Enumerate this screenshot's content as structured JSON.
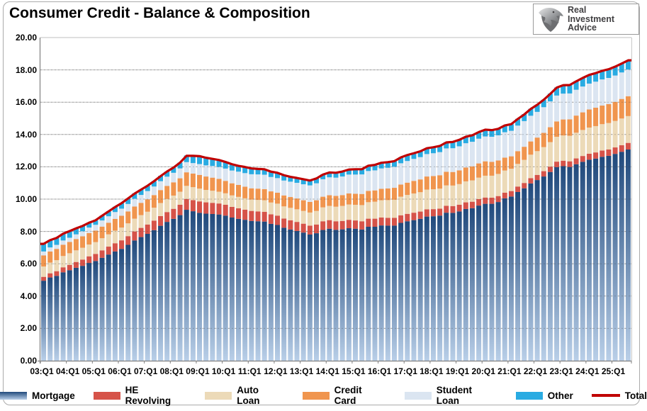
{
  "title": "Consumer Credit - Balance & Composition",
  "logo": {
    "lines": [
      "Real",
      "Investment",
      "Advice"
    ]
  },
  "colors": {
    "total_line": "#c00000",
    "gridline": "#bfbfbf",
    "axis": "#808080",
    "mortgage_gradient_bottom": "#b9cfe8",
    "mortgage_gradient_top": "#20497c",
    "he_revolving": "#d65349",
    "auto_loan": "#ecdab8",
    "credit_card": "#f0954e",
    "student_loan": "#dbe5f1",
    "other": "#29abe2"
  },
  "chart_data": {
    "type": "bar",
    "stacked": true,
    "grid": true,
    "legend_position": "bottom",
    "ylim": [
      0,
      20
    ],
    "ytick_step": 2,
    "y_tick_labels": [
      "0.00",
      "2.00",
      "4.00",
      "6.00",
      "8.00",
      "10.00",
      "12.00",
      "14.00",
      "16.00",
      "18.00",
      "20.00"
    ],
    "x_tick_labels": [
      "03:Q1",
      "04:Q1",
      "05:Q1",
      "06:Q1",
      "07:Q1",
      "08:Q1",
      "09:Q1",
      "10:Q1",
      "11:Q1",
      "12:Q1",
      "13:Q1",
      "14:Q1",
      "15:Q1",
      "16:Q1",
      "17:Q1",
      "18:Q1",
      "19:Q1",
      "20:Q1",
      "21:Q1",
      "22:Q1",
      "23:Q1",
      "24:Q1",
      "25:Q1"
    ],
    "x": [
      "03:Q1",
      "03:Q2",
      "03:Q3",
      "03:Q4",
      "04:Q1",
      "04:Q2",
      "04:Q3",
      "04:Q4",
      "05:Q1",
      "05:Q2",
      "05:Q3",
      "05:Q4",
      "06:Q1",
      "06:Q2",
      "06:Q3",
      "06:Q4",
      "07:Q1",
      "07:Q2",
      "07:Q3",
      "07:Q4",
      "08:Q1",
      "08:Q2",
      "08:Q3",
      "08:Q4",
      "09:Q1",
      "09:Q2",
      "09:Q3",
      "09:Q4",
      "10:Q1",
      "10:Q2",
      "10:Q3",
      "10:Q4",
      "11:Q1",
      "11:Q2",
      "11:Q3",
      "11:Q4",
      "12:Q1",
      "12:Q2",
      "12:Q3",
      "12:Q4",
      "13:Q1",
      "13:Q2",
      "13:Q3",
      "13:Q4",
      "14:Q1",
      "14:Q2",
      "14:Q3",
      "14:Q4",
      "15:Q1",
      "15:Q2",
      "15:Q3",
      "15:Q4",
      "16:Q1",
      "16:Q2",
      "16:Q3",
      "16:Q4",
      "17:Q1",
      "17:Q2",
      "17:Q3",
      "17:Q4",
      "18:Q1",
      "18:Q2",
      "18:Q3",
      "18:Q4",
      "19:Q1",
      "19:Q2",
      "19:Q3",
      "19:Q4",
      "20:Q1",
      "20:Q2",
      "20:Q3",
      "20:Q4",
      "21:Q1",
      "21:Q2",
      "21:Q3",
      "21:Q4",
      "22:Q1",
      "22:Q2",
      "22:Q3",
      "22:Q4",
      "23:Q1",
      "23:Q2",
      "23:Q3",
      "23:Q4",
      "24:Q1",
      "24:Q2",
      "24:Q3",
      "24:Q4",
      "25:Q1",
      "25:Q2",
      "25:Q3"
    ],
    "series": [
      {
        "name": "Mortgage",
        "fill": "gradient",
        "values": [
          4.95,
          5.15,
          5.25,
          5.47,
          5.6,
          5.75,
          5.87,
          6.05,
          6.17,
          6.37,
          6.57,
          6.76,
          6.92,
          7.17,
          7.44,
          7.65,
          7.85,
          8.08,
          8.35,
          8.59,
          8.78,
          9.01,
          9.34,
          9.25,
          9.15,
          9.1,
          9.08,
          9.05,
          8.98,
          8.86,
          8.78,
          8.72,
          8.65,
          8.63,
          8.61,
          8.47,
          8.4,
          8.23,
          8.12,
          8.03,
          7.93,
          7.81,
          7.89,
          8.09,
          8.17,
          8.1,
          8.13,
          8.2,
          8.17,
          8.12,
          8.29,
          8.29,
          8.37,
          8.36,
          8.36,
          8.53,
          8.63,
          8.7,
          8.78,
          8.92,
          8.94,
          8.98,
          9.16,
          9.15,
          9.24,
          9.39,
          9.44,
          9.6,
          9.71,
          9.71,
          9.82,
          10.05,
          10.16,
          10.44,
          10.67,
          10.97,
          11.18,
          11.4,
          11.68,
          11.98,
          12.04,
          11.99,
          12.16,
          12.31,
          12.44,
          12.51,
          12.62,
          12.68,
          12.8,
          12.93,
          13.07
        ]
      },
      {
        "name": "HE Revolving",
        "fill": "#d65349",
        "values": [
          0.24,
          0.26,
          0.29,
          0.31,
          0.33,
          0.36,
          0.39,
          0.41,
          0.44,
          0.46,
          0.49,
          0.51,
          0.53,
          0.54,
          0.56,
          0.57,
          0.58,
          0.59,
          0.6,
          0.61,
          0.62,
          0.64,
          0.67,
          0.69,
          0.71,
          0.7,
          0.69,
          0.68,
          0.67,
          0.66,
          0.65,
          0.63,
          0.62,
          0.61,
          0.6,
          0.59,
          0.58,
          0.57,
          0.57,
          0.56,
          0.55,
          0.55,
          0.54,
          0.54,
          0.53,
          0.53,
          0.52,
          0.52,
          0.51,
          0.51,
          0.5,
          0.5,
          0.49,
          0.48,
          0.48,
          0.47,
          0.46,
          0.46,
          0.45,
          0.45,
          0.44,
          0.43,
          0.43,
          0.42,
          0.41,
          0.41,
          0.4,
          0.4,
          0.39,
          0.38,
          0.37,
          0.35,
          0.34,
          0.34,
          0.33,
          0.33,
          0.32,
          0.33,
          0.33,
          0.34,
          0.34,
          0.35,
          0.36,
          0.36,
          0.37,
          0.38,
          0.39,
          0.39,
          0.4,
          0.41,
          0.41
        ]
      },
      {
        "name": "Auto Loan",
        "fill": "#ecdab8",
        "values": [
          0.64,
          0.66,
          0.68,
          0.7,
          0.72,
          0.72,
          0.73,
          0.73,
          0.73,
          0.75,
          0.76,
          0.78,
          0.79,
          0.79,
          0.79,
          0.79,
          0.79,
          0.8,
          0.81,
          0.81,
          0.82,
          0.81,
          0.81,
          0.8,
          0.79,
          0.77,
          0.75,
          0.73,
          0.71,
          0.71,
          0.71,
          0.7,
          0.7,
          0.71,
          0.72,
          0.73,
          0.74,
          0.75,
          0.77,
          0.78,
          0.79,
          0.81,
          0.84,
          0.86,
          0.88,
          0.9,
          0.93,
          0.95,
          0.97,
          1.0,
          1.02,
          1.05,
          1.07,
          1.1,
          1.12,
          1.15,
          1.17,
          1.19,
          1.2,
          1.22,
          1.23,
          1.24,
          1.26,
          1.27,
          1.28,
          1.3,
          1.32,
          1.33,
          1.35,
          1.36,
          1.37,
          1.37,
          1.38,
          1.4,
          1.43,
          1.45,
          1.47,
          1.49,
          1.52,
          1.54,
          1.56,
          1.58,
          1.59,
          1.61,
          1.62,
          1.63,
          1.63,
          1.64,
          1.64,
          1.65,
          1.66
        ]
      },
      {
        "name": "Credit Card",
        "fill": "#f0954e",
        "values": [
          0.69,
          0.69,
          0.7,
          0.7,
          0.7,
          0.7,
          0.71,
          0.71,
          0.71,
          0.72,
          0.72,
          0.73,
          0.73,
          0.74,
          0.75,
          0.76,
          0.77,
          0.78,
          0.8,
          0.81,
          0.82,
          0.83,
          0.84,
          0.84,
          0.85,
          0.83,
          0.81,
          0.79,
          0.77,
          0.75,
          0.74,
          0.72,
          0.7,
          0.7,
          0.69,
          0.69,
          0.68,
          0.68,
          0.67,
          0.67,
          0.66,
          0.66,
          0.66,
          0.66,
          0.66,
          0.67,
          0.67,
          0.68,
          0.68,
          0.69,
          0.7,
          0.7,
          0.71,
          0.72,
          0.74,
          0.75,
          0.76,
          0.78,
          0.79,
          0.81,
          0.82,
          0.83,
          0.84,
          0.84,
          0.85,
          0.86,
          0.87,
          0.88,
          0.89,
          0.86,
          0.83,
          0.8,
          0.77,
          0.79,
          0.81,
          0.82,
          0.84,
          0.88,
          0.92,
          0.95,
          0.99,
          1.02,
          1.06,
          1.09,
          1.12,
          1.14,
          1.15,
          1.17,
          1.18,
          1.21,
          1.23
        ]
      },
      {
        "name": "Student Loan",
        "fill": "#dbe5f1",
        "values": [
          0.24,
          0.25,
          0.25,
          0.26,
          0.26,
          0.29,
          0.31,
          0.34,
          0.36,
          0.38,
          0.4,
          0.42,
          0.44,
          0.46,
          0.48,
          0.49,
          0.51,
          0.53,
          0.55,
          0.57,
          0.59,
          0.61,
          0.63,
          0.65,
          0.67,
          0.69,
          0.72,
          0.74,
          0.76,
          0.79,
          0.82,
          0.84,
          0.87,
          0.88,
          0.89,
          0.89,
          0.9,
          0.92,
          0.95,
          0.97,
          0.99,
          1.02,
          1.05,
          1.08,
          1.11,
          1.13,
          1.15,
          1.17,
          1.19,
          1.21,
          1.23,
          1.24,
          1.26,
          1.28,
          1.3,
          1.32,
          1.34,
          1.36,
          1.38,
          1.39,
          1.41,
          1.43,
          1.45,
          1.47,
          1.49,
          1.5,
          1.52,
          1.53,
          1.54,
          1.55,
          1.56,
          1.57,
          1.58,
          1.58,
          1.59,
          1.59,
          1.59,
          1.59,
          1.6,
          1.6,
          1.6,
          1.6,
          1.6,
          1.6,
          1.6,
          1.61,
          1.62,
          1.62,
          1.63,
          1.64,
          1.65
        ]
      },
      {
        "name": "Other",
        "fill": "#29abe2",
        "values": [
          0.47,
          0.46,
          0.44,
          0.43,
          0.41,
          0.38,
          0.35,
          0.31,
          0.28,
          0.3,
          0.31,
          0.33,
          0.34,
          0.34,
          0.34,
          0.33,
          0.33,
          0.33,
          0.33,
          0.32,
          0.32,
          0.36,
          0.41,
          0.45,
          0.49,
          0.47,
          0.45,
          0.43,
          0.41,
          0.4,
          0.39,
          0.37,
          0.36,
          0.35,
          0.35,
          0.34,
          0.33,
          0.33,
          0.32,
          0.32,
          0.31,
          0.31,
          0.31,
          0.3,
          0.3,
          0.31,
          0.32,
          0.32,
          0.33,
          0.34,
          0.34,
          0.35,
          0.35,
          0.36,
          0.36,
          0.37,
          0.37,
          0.37,
          0.37,
          0.37,
          0.37,
          0.38,
          0.39,
          0.39,
          0.4,
          0.41,
          0.41,
          0.42,
          0.42,
          0.42,
          0.42,
          0.41,
          0.41,
          0.42,
          0.43,
          0.43,
          0.44,
          0.46,
          0.48,
          0.5,
          0.52,
          0.53,
          0.53,
          0.54,
          0.54,
          0.54,
          0.55,
          0.55,
          0.55,
          0.56,
          0.57
        ]
      }
    ],
    "total": {
      "name": "Total",
      "color": "#c00000",
      "values": [
        7.23,
        7.46,
        7.6,
        7.86,
        8.02,
        8.19,
        8.34,
        8.54,
        8.69,
        8.97,
        9.24,
        9.51,
        9.75,
        10.04,
        10.34,
        10.59,
        10.83,
        11.11,
        11.42,
        11.71,
        11.95,
        12.26,
        12.68,
        12.68,
        12.66,
        12.56,
        12.49,
        12.42,
        12.3,
        12.16,
        12.06,
        11.99,
        11.9,
        11.87,
        11.85,
        11.7,
        11.63,
        11.48,
        11.38,
        11.31,
        11.23,
        11.15,
        11.28,
        11.52,
        11.65,
        11.63,
        11.71,
        11.83,
        11.85,
        11.85,
        12.07,
        12.12,
        12.25,
        12.29,
        12.35,
        12.58,
        12.73,
        12.84,
        12.96,
        13.15,
        13.21,
        13.29,
        13.51,
        13.54,
        13.67,
        13.86,
        13.95,
        14.15,
        14.3,
        14.27,
        14.35,
        14.56,
        14.64,
        14.96,
        15.24,
        15.58,
        15.84,
        16.15,
        16.51,
        16.9,
        17.05,
        17.06,
        17.29,
        17.5,
        17.69,
        17.8,
        17.94,
        18.04,
        18.2,
        18.39,
        18.59
      ]
    },
    "legend": [
      "Mortgage",
      "HE Revolving",
      "Auto Loan",
      "Credit Card",
      "Student Loan",
      "Other",
      "Total"
    ]
  }
}
